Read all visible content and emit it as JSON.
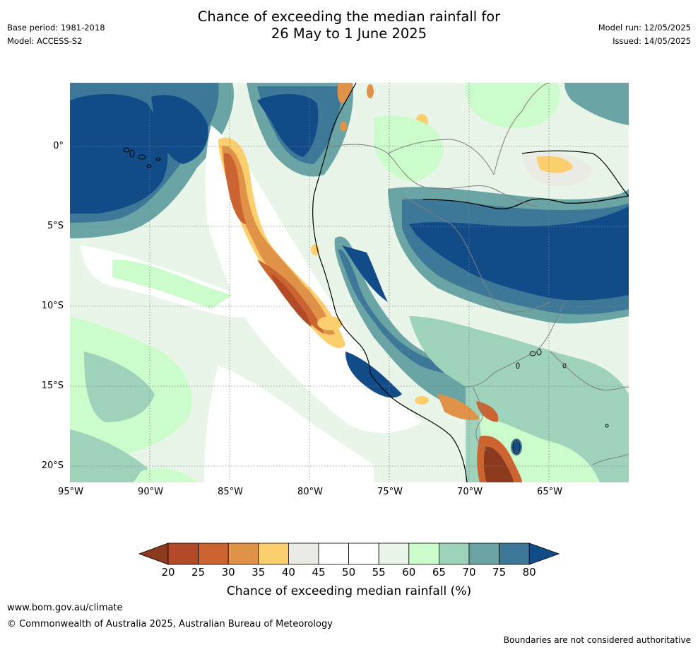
{
  "header": {
    "title_line1": "Chance of exceeding the median rainfall for",
    "title_line2": "26 May to 1 June 2025",
    "base_period": "Base period: 1981-2018",
    "model": "Model: ACCESS-S2",
    "model_run": "Model run: 12/05/2025",
    "issued": "Issued: 14/05/2025"
  },
  "map": {
    "lat_labels": [
      "0°",
      "5°S",
      "10°S",
      "15°S",
      "20°S"
    ],
    "lon_labels": [
      "95°W",
      "90°W",
      "85°W",
      "80°W",
      "75°W",
      "70°W",
      "65°W"
    ]
  },
  "colorbar": {
    "ticks": [
      "20",
      "25",
      "30",
      "35",
      "40",
      "45",
      "50",
      "55",
      "60",
      "65",
      "70",
      "75",
      "80"
    ],
    "colors": [
      "#8b3a1e",
      "#b24a28",
      "#cc6432",
      "#e09248",
      "#fccf6e",
      "#ebebe6",
      "#ffffff",
      "#ffffff",
      "#eaf5ea",
      "#ccfccc",
      "#9ed2ba",
      "#6aa4a4",
      "#3e7898",
      "#124c88"
    ],
    "title": "Chance of exceeding median rainfall (%)"
  },
  "footer": {
    "website": "www.bom.gov.au/climate",
    "copyright": "© Commonwealth of Australia 2025, Australian Bureau of Meteorology",
    "disclaimer": "Boundaries are not considered authoritative"
  }
}
